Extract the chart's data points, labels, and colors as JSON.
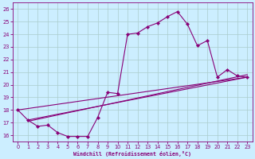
{
  "xlabel": "Windchill (Refroidissement éolien,°C)",
  "bg_color": "#cceeff",
  "line_color": "#880077",
  "grid_color": "#aacccc",
  "hours": [
    0,
    1,
    2,
    3,
    4,
    5,
    6,
    7,
    8,
    9,
    10,
    11,
    12,
    13,
    14,
    15,
    16,
    17,
    18,
    19,
    20,
    21,
    22,
    23
  ],
  "temps": [
    18.0,
    17.2,
    16.7,
    16.8,
    16.2,
    15.9,
    15.9,
    15.9,
    17.4,
    19.4,
    19.3,
    24.0,
    24.1,
    24.6,
    24.9,
    25.4,
    25.8,
    24.8,
    23.1,
    23.5,
    20.6,
    21.2,
    20.7,
    20.6
  ],
  "line2_x": [
    1,
    23
  ],
  "line2_y": [
    17.2,
    20.6
  ],
  "line3_x": [
    0,
    23
  ],
  "line3_y": [
    18.0,
    20.6
  ],
  "line4_x": [
    1,
    23
  ],
  "line4_y": [
    17.1,
    20.8
  ],
  "ylim": [
    15.5,
    26.5
  ],
  "xlim": [
    -0.5,
    23.5
  ],
  "yticks": [
    16,
    17,
    18,
    19,
    20,
    21,
    22,
    23,
    24,
    25,
    26
  ],
  "xticks": [
    0,
    1,
    2,
    3,
    4,
    5,
    6,
    7,
    8,
    9,
    10,
    11,
    12,
    13,
    14,
    15,
    16,
    17,
    18,
    19,
    20,
    21,
    22,
    23
  ]
}
